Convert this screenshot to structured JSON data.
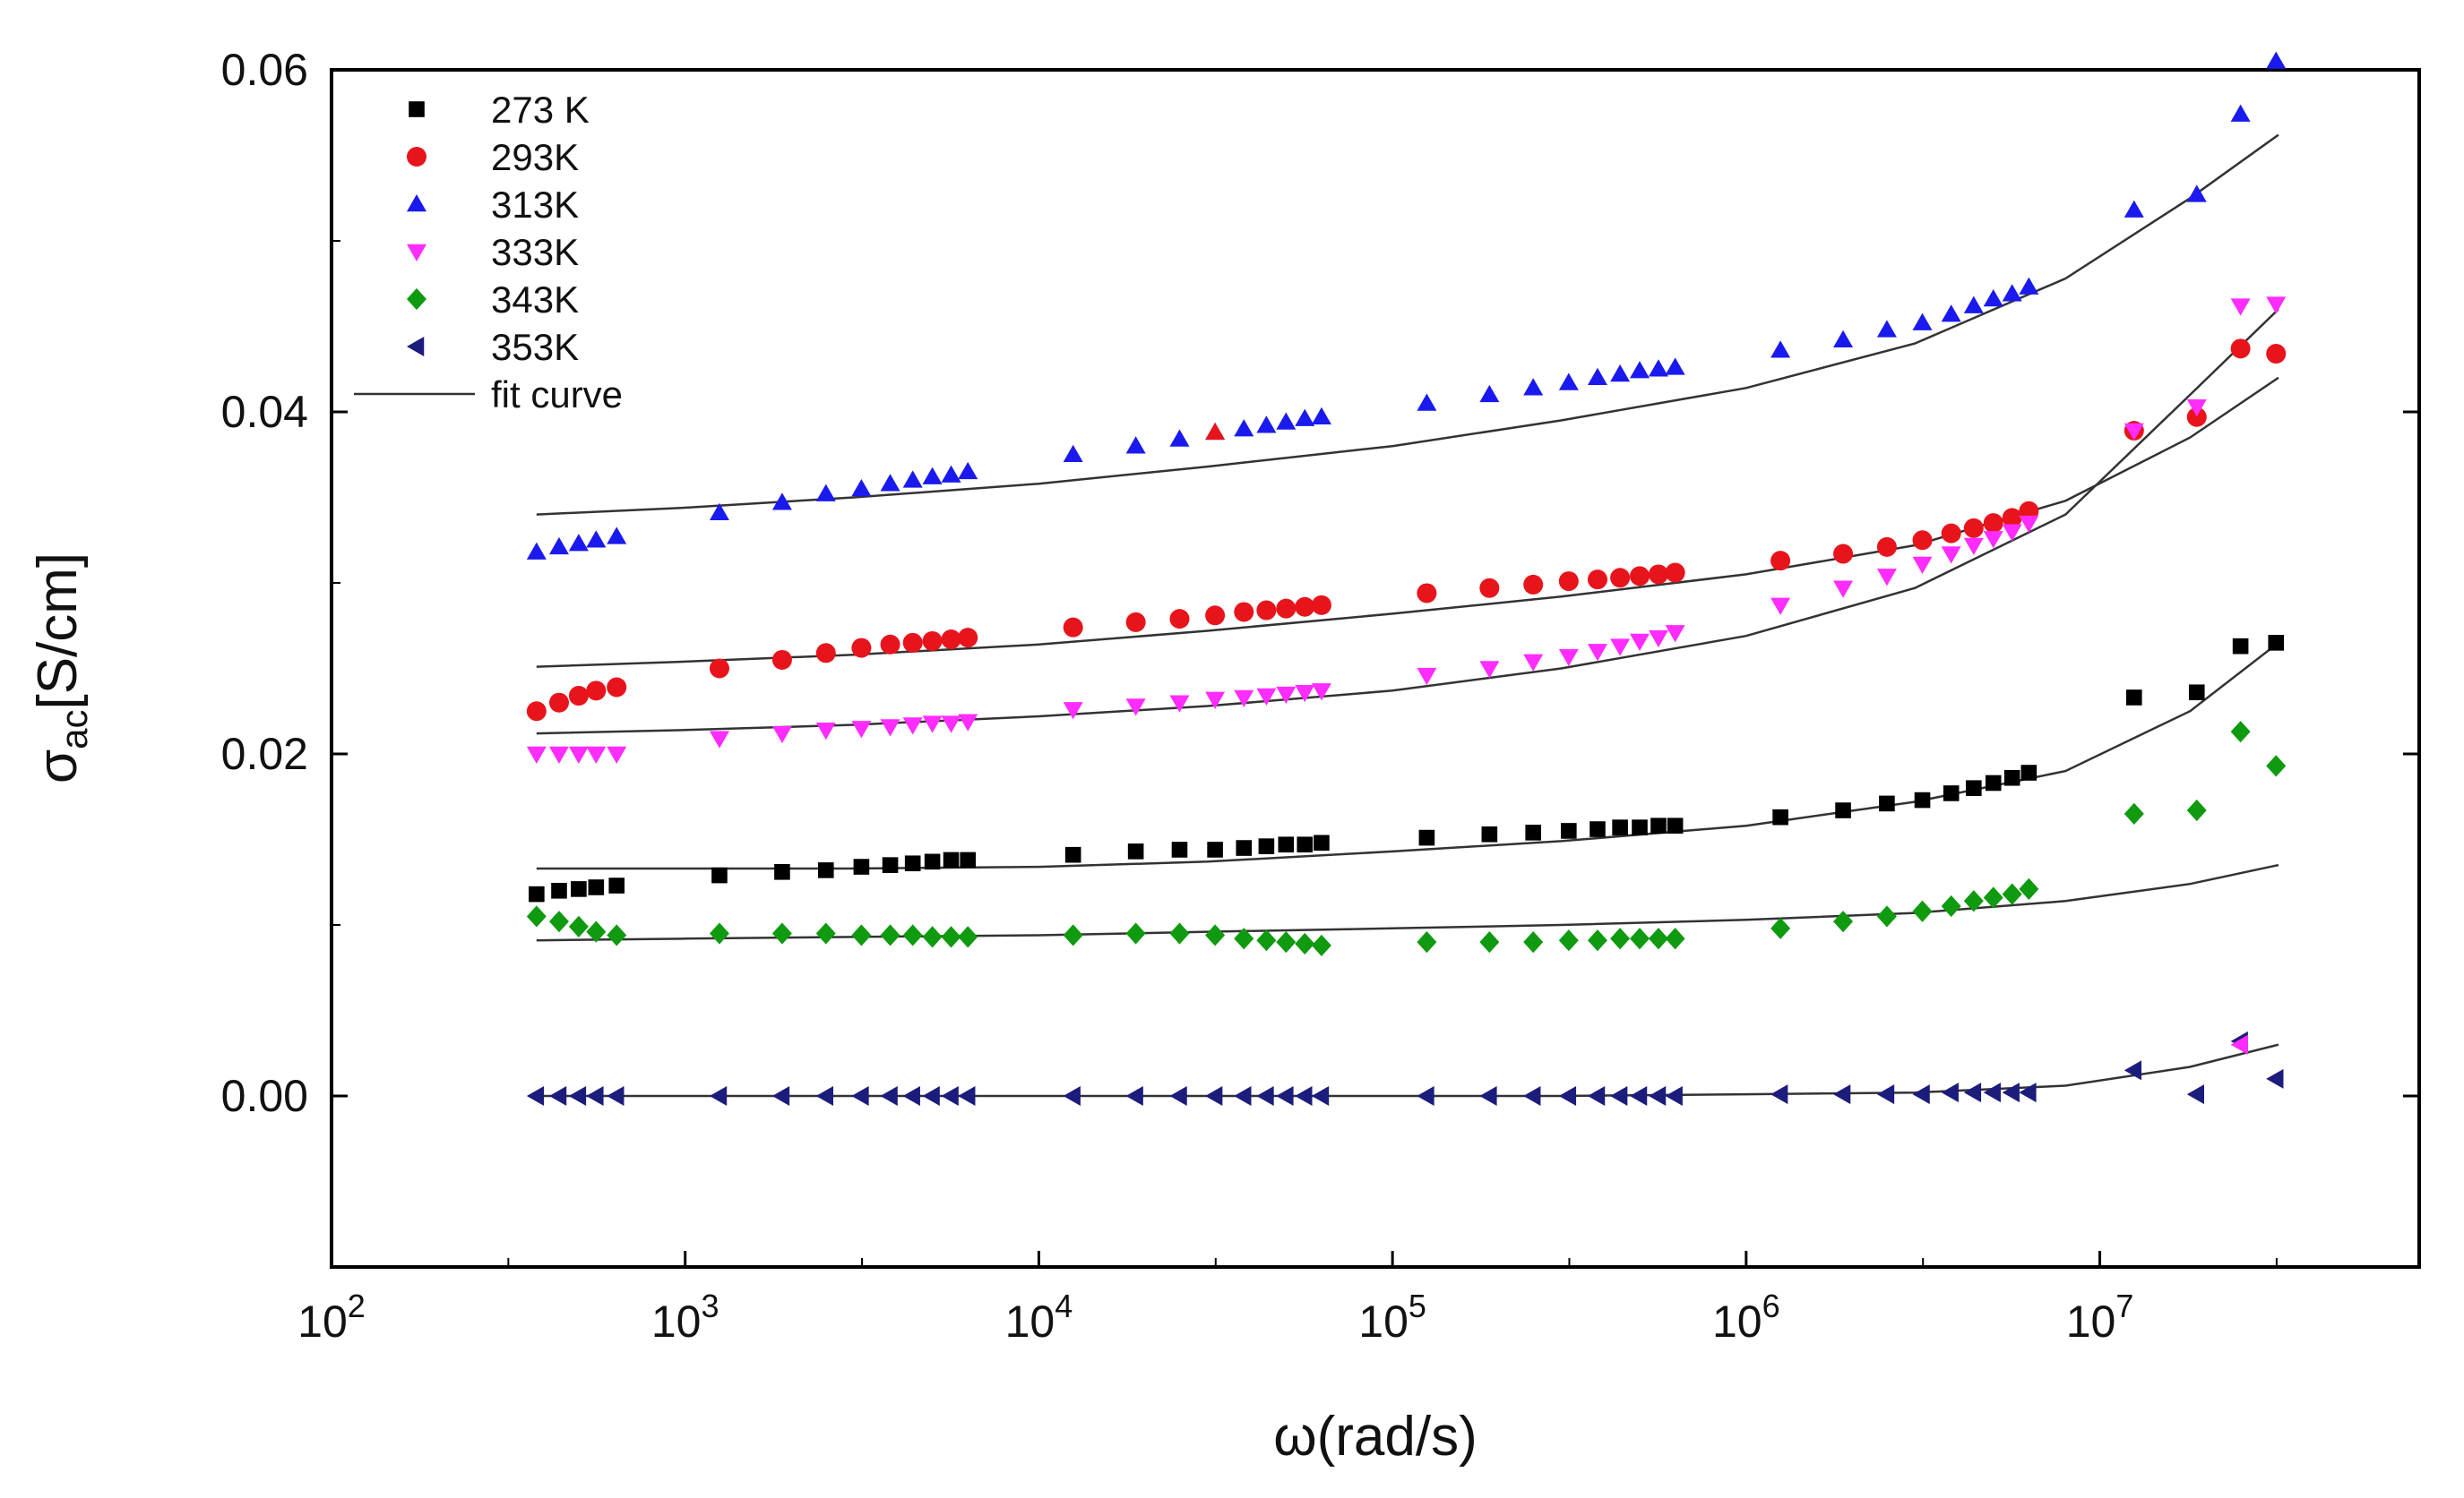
{
  "chart_data": {
    "type": "scatter",
    "title": "",
    "xlabel_main": "ω",
    "xlabel_unit": "(rad/s)",
    "ylabel_main": "σ",
    "ylabel_sub": "ac",
    "ylabel_unit": "[S/cm]",
    "xscale": "log",
    "xlim": [
      100,
      80000000
    ],
    "ylim": [
      -0.01,
      0.06
    ],
    "grid": false,
    "legend_position": "top-left",
    "x_ticks": [
      {
        "base": "10",
        "exp": "2",
        "value": 100
      },
      {
        "base": "10",
        "exp": "3",
        "value": 1000
      },
      {
        "base": "10",
        "exp": "4",
        "value": 10000
      },
      {
        "base": "10",
        "exp": "5",
        "value": 100000
      },
      {
        "base": "10",
        "exp": "6",
        "value": 1000000
      },
      {
        "base": "10",
        "exp": "7",
        "value": 10000000
      }
    ],
    "y_ticks": [
      {
        "label": "0.00",
        "value": 0
      },
      {
        "label": "0.02",
        "value": 0.02
      },
      {
        "label": "0.04",
        "value": 0.04
      },
      {
        "label": "0.06",
        "value": 0.06
      }
    ],
    "x": [
      380,
      440,
      500,
      560,
      640,
      1250,
      1880,
      2500,
      3150,
      3800,
      4400,
      5000,
      5650,
      6300,
      12500,
      18800,
      25000,
      31500,
      38000,
      44000,
      50000,
      56500,
      63000,
      125000,
      188000,
      250000,
      315000,
      380000,
      440000,
      500000,
      565000,
      630000,
      1250000,
      1880000,
      2500000,
      3150000,
      3800000,
      4400000,
      5000000,
      5650000,
      6300000,
      12500000,
      18800000,
      25000000,
      31500000
    ],
    "series": [
      {
        "name": "273 K",
        "color": "#000000",
        "marker": "square",
        "values": [
          0.0118,
          0.012,
          0.0121,
          0.0122,
          0.0123,
          0.0129,
          0.0131,
          0.0132,
          0.0134,
          0.0135,
          0.0136,
          0.0137,
          0.0138,
          0.0138,
          0.0141,
          0.0143,
          0.0144,
          0.0144,
          0.0145,
          0.0146,
          0.0147,
          0.0147,
          0.0148,
          0.0151,
          0.0153,
          0.0154,
          0.0155,
          0.0156,
          0.0157,
          0.0157,
          0.0158,
          0.0158,
          0.0163,
          0.0167,
          0.0171,
          0.0173,
          0.0177,
          0.018,
          0.0183,
          0.0186,
          0.0189,
          0.0233,
          0.0236,
          0.0263,
          0.0265
        ],
        "fit": [
          0.0133,
          0.0133,
          0.0133,
          0.0134,
          0.0137,
          0.0143,
          0.0149,
          0.0158,
          0.0172,
          0.019,
          0.0225,
          0.0265
        ]
      },
      {
        "name": "293K",
        "color": "#e8141c",
        "marker": "circle",
        "values": [
          0.0225,
          0.023,
          0.0234,
          0.0237,
          0.0239,
          0.025,
          0.0255,
          0.0259,
          0.0262,
          0.0264,
          0.0265,
          0.0266,
          0.0267,
          0.0268,
          0.0274,
          0.0277,
          0.0279,
          0.0281,
          0.0283,
          0.0284,
          0.0285,
          0.0286,
          0.0287,
          0.0294,
          0.0297,
          0.0299,
          0.0301,
          0.0302,
          0.0303,
          0.0304,
          0.0305,
          0.0306,
          0.0313,
          0.0317,
          0.0321,
          0.0325,
          0.0329,
          0.0332,
          0.0335,
          0.0338,
          0.0342,
          0.0389,
          0.0397,
          0.0437,
          0.0434
        ],
        "fit": [
          0.0251,
          0.0254,
          0.0258,
          0.0264,
          0.0272,
          0.0282,
          0.0292,
          0.0305,
          0.0322,
          0.0348,
          0.0385,
          0.042
        ]
      },
      {
        "name": "313K",
        "color": "#1a1aee",
        "marker": "triangle-up",
        "values": [
          0.0318,
          0.0321,
          0.0323,
          0.0325,
          0.0327,
          0.0341,
          0.0347,
          0.0352,
          0.0355,
          0.0358,
          0.036,
          0.0362,
          0.0363,
          0.0365,
          0.0375,
          0.038,
          0.0384,
          0.0388,
          0.039,
          0.0392,
          0.0394,
          0.0396,
          0.0397,
          0.0405,
          0.041,
          0.0414,
          0.0417,
          0.042,
          0.0422,
          0.0424,
          0.0425,
          0.0426,
          0.0436,
          0.0442,
          0.0448,
          0.0452,
          0.0457,
          0.0462,
          0.0466,
          0.0469,
          0.0473,
          0.0518,
          0.0527,
          0.0574,
          0.0605
        ],
        "fit": [
          0.034,
          0.0344,
          0.035,
          0.0358,
          0.0368,
          0.038,
          0.0395,
          0.0414,
          0.044,
          0.0478,
          0.0525,
          0.0562
        ]
      },
      {
        "name": "333K",
        "color": "#ff2cff",
        "marker": "triangle-down",
        "values": [
          0.02,
          0.02,
          0.02,
          0.02,
          0.02,
          0.0209,
          0.0212,
          0.0214,
          0.0215,
          0.0216,
          0.0217,
          0.0218,
          0.0218,
          0.0219,
          0.0226,
          0.0228,
          0.023,
          0.0232,
          0.0233,
          0.0234,
          0.0235,
          0.0236,
          0.0237,
          0.0246,
          0.025,
          0.0254,
          0.0257,
          0.026,
          0.0263,
          0.0266,
          0.0268,
          0.0271,
          0.0287,
          0.0297,
          0.0304,
          0.0311,
          0.0317,
          0.0322,
          0.0326,
          0.033,
          0.0335,
          0.0389,
          0.0403,
          0.0462,
          0.0463
        ],
        "fit": [
          0.0212,
          0.0214,
          0.0217,
          0.0222,
          0.0228,
          0.0237,
          0.025,
          0.0269,
          0.0297,
          0.034,
          0.041,
          0.046
        ]
      },
      {
        "name": "343K",
        "color": "#0f9a0f",
        "marker": "diamond",
        "values": [
          0.0105,
          0.0102,
          0.0099,
          0.0096,
          0.0094,
          0.0095,
          0.0095,
          0.0095,
          0.0094,
          0.0094,
          0.0094,
          0.0093,
          0.0093,
          0.0093,
          0.0094,
          0.0095,
          0.0095,
          0.0094,
          0.0092,
          0.0091,
          0.009,
          0.0089,
          0.0088,
          0.009,
          0.009,
          0.009,
          0.0091,
          0.0091,
          0.0092,
          0.0092,
          0.0092,
          0.0092,
          0.0098,
          0.0102,
          0.0105,
          0.0108,
          0.0111,
          0.0114,
          0.0116,
          0.0118,
          0.0121,
          0.0165,
          0.0167,
          0.0213,
          0.0193
        ],
        "fit": [
          0.0091,
          0.0092,
          0.0093,
          0.0094,
          0.0096,
          0.0098,
          0.01,
          0.0103,
          0.0107,
          0.0114,
          0.0124,
          0.0135
        ]
      },
      {
        "name": "353K",
        "color": "#1c1c7c",
        "marker": "triangle-left",
        "values": [
          0,
          0,
          0,
          0,
          0,
          0,
          0,
          0,
          0,
          0,
          0,
          0,
          0,
          0,
          0,
          0,
          0,
          0,
          0,
          0,
          0,
          0,
          0,
          0,
          0,
          0,
          0,
          0,
          0,
          0,
          0,
          0,
          0.0001,
          0.0001,
          0.0001,
          0.0001,
          0.0002,
          0.0002,
          0.0002,
          0.0002,
          0.0002,
          0.0015,
          0.0001,
          0.0032,
          0.001
        ],
        "fit": [
          0.0,
          0.0,
          0.0,
          0.0,
          0.0,
          0.0,
          0.0,
          0.0001,
          0.0002,
          0.0006,
          0.0017,
          0.003
        ]
      }
    ],
    "fit_x": [
      380,
      1000,
      3000,
      10000,
      30000,
      100000,
      300000,
      1000000,
      3000000,
      8000000,
      18000000,
      32000000
    ],
    "fit_label": "fit curve",
    "fit_color": "#333333",
    "outlier_points": [
      {
        "series": "293K",
        "x": 31500,
        "y": 0.0388,
        "color": "#e8141c",
        "marker": "triangle-up"
      },
      {
        "series": "333K",
        "x": 25000000,
        "y": 0.003,
        "color": "#ff2cff",
        "marker": "triangle-left"
      }
    ]
  }
}
